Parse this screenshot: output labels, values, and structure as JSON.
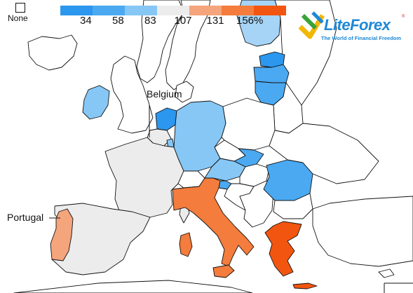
{
  "legend": {
    "none_label": "None",
    "swatches": [
      {
        "color": "#2b97ee",
        "label": "34"
      },
      {
        "color": "#4aa9f1",
        "label": "58"
      },
      {
        "color": "#86c7f5",
        "label": "83"
      },
      {
        "color": "#ececec",
        "label": "107"
      },
      {
        "color": "#f4a57c",
        "label": "131"
      },
      {
        "color": "#f47c3c",
        "label": "156%"
      },
      {
        "color": "#f25510",
        "label": ""
      }
    ]
  },
  "callouts": {
    "belgium": "Belgium",
    "portugal": "Portugal"
  },
  "logo": {
    "name": "LiteForex",
    "tagline": "The World of Financial Freedom",
    "reg": "®"
  },
  "colors": {
    "nodata": "#ffffff",
    "light_gray": "#ececec",
    "pale_blue": "#a6d4f7",
    "light_blue": "#86c7f5",
    "mid_blue": "#4aa9f1",
    "blue": "#2b97ee",
    "peach": "#f4a57c",
    "orange": "#f47c3c",
    "deep_orange": "#f25510"
  }
}
